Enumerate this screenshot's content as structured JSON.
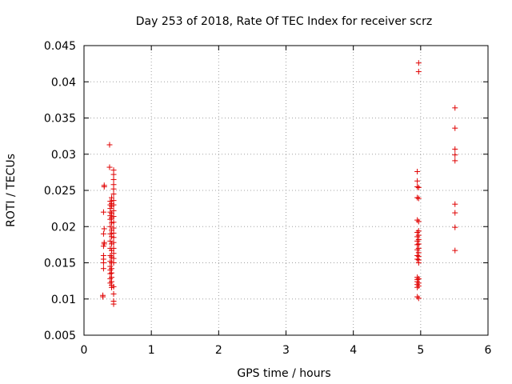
{
  "chart_data": {
    "type": "scatter",
    "title": "Day 253 of 2018, Rate Of TEC Index for receiver scrz",
    "xlabel": "GPS time / hours",
    "ylabel": "ROTI / TECUs",
    "xlim": [
      0,
      6
    ],
    "ylim": [
      0.005,
      0.045
    ],
    "xticks": [
      "0",
      "1",
      "2",
      "3",
      "4",
      "5",
      "6"
    ],
    "yticks": [
      "0.005",
      "0.01",
      "0.015",
      "0.02",
      "0.025",
      "0.03",
      "0.035",
      "0.04",
      "0.045"
    ],
    "grid": true,
    "marker": "+",
    "color": "#e00000",
    "series": [
      {
        "points": [
          [
            0.28,
            0.0105
          ],
          [
            0.28,
            0.0103
          ],
          [
            0.29,
            0.0142
          ],
          [
            0.29,
            0.015
          ],
          [
            0.29,
            0.0155
          ],
          [
            0.29,
            0.016
          ],
          [
            0.29,
            0.0173
          ],
          [
            0.3,
            0.0176
          ],
          [
            0.3,
            0.0178
          ],
          [
            0.29,
            0.019
          ],
          [
            0.3,
            0.0197
          ],
          [
            0.29,
            0.022
          ],
          [
            0.3,
            0.0255
          ],
          [
            0.3,
            0.0257
          ],
          [
            0.38,
            0.0313
          ],
          [
            0.38,
            0.0282
          ],
          [
            0.39,
            0.0235
          ],
          [
            0.39,
            0.023
          ],
          [
            0.39,
            0.0225
          ],
          [
            0.39,
            0.022
          ],
          [
            0.39,
            0.0215
          ],
          [
            0.39,
            0.021
          ],
          [
            0.39,
            0.02
          ],
          [
            0.39,
            0.019
          ],
          [
            0.39,
            0.018
          ],
          [
            0.39,
            0.017
          ],
          [
            0.39,
            0.016
          ],
          [
            0.39,
            0.0152
          ],
          [
            0.39,
            0.0145
          ],
          [
            0.39,
            0.014
          ],
          [
            0.39,
            0.0135
          ],
          [
            0.39,
            0.0128
          ],
          [
            0.39,
            0.0122
          ],
          [
            0.41,
            0.024
          ],
          [
            0.41,
            0.0232
          ],
          [
            0.41,
            0.0228
          ],
          [
            0.41,
            0.0218
          ],
          [
            0.41,
            0.0212
          ],
          [
            0.41,
            0.0205
          ],
          [
            0.41,
            0.0195
          ],
          [
            0.41,
            0.0186
          ],
          [
            0.41,
            0.0176
          ],
          [
            0.41,
            0.0167
          ],
          [
            0.41,
            0.0158
          ],
          [
            0.41,
            0.015
          ],
          [
            0.41,
            0.0142
          ],
          [
            0.41,
            0.0136
          ],
          [
            0.41,
            0.013
          ],
          [
            0.41,
            0.0124
          ],
          [
            0.41,
            0.0119
          ],
          [
            0.41,
            0.0116
          ],
          [
            0.44,
            0.0278
          ],
          [
            0.44,
            0.0272
          ],
          [
            0.44,
            0.0265
          ],
          [
            0.44,
            0.0258
          ],
          [
            0.44,
            0.0252
          ],
          [
            0.44,
            0.0245
          ],
          [
            0.44,
            0.0236
          ],
          [
            0.44,
            0.023
          ],
          [
            0.44,
            0.0222
          ],
          [
            0.44,
            0.0214
          ],
          [
            0.44,
            0.0206
          ],
          [
            0.44,
            0.0198
          ],
          [
            0.44,
            0.0191
          ],
          [
            0.44,
            0.0185
          ],
          [
            0.44,
            0.0178
          ],
          [
            0.44,
            0.017
          ],
          [
            0.44,
            0.0163
          ],
          [
            0.44,
            0.0156
          ],
          [
            0.44,
            0.015
          ],
          [
            0.44,
            0.0117
          ],
          [
            0.44,
            0.0107
          ],
          [
            0.44,
            0.0097
          ],
          [
            0.44,
            0.0093
          ],
          [
            4.95,
            0.0276
          ],
          [
            4.95,
            0.0263
          ],
          [
            4.95,
            0.0255
          ],
          [
            4.95,
            0.024
          ],
          [
            4.95,
            0.0209
          ],
          [
            4.95,
            0.0192
          ],
          [
            4.95,
            0.0186
          ],
          [
            4.95,
            0.018
          ],
          [
            4.95,
            0.0175
          ],
          [
            4.95,
            0.0168
          ],
          [
            4.95,
            0.016
          ],
          [
            4.95,
            0.0155
          ],
          [
            4.95,
            0.013
          ],
          [
            4.95,
            0.0127
          ],
          [
            4.95,
            0.0124
          ],
          [
            4.95,
            0.012
          ],
          [
            4.95,
            0.0116
          ],
          [
            4.95,
            0.0103
          ],
          [
            4.97,
            0.0426
          ],
          [
            4.97,
            0.0414
          ],
          [
            4.97,
            0.0254
          ],
          [
            4.97,
            0.0239
          ],
          [
            4.97,
            0.0207
          ],
          [
            4.97,
            0.0194
          ],
          [
            4.97,
            0.0188
          ],
          [
            4.97,
            0.0182
          ],
          [
            4.97,
            0.0176
          ],
          [
            4.97,
            0.017
          ],
          [
            4.97,
            0.0164
          ],
          [
            4.97,
            0.0159
          ],
          [
            4.97,
            0.0154
          ],
          [
            4.97,
            0.015
          ],
          [
            4.97,
            0.0128
          ],
          [
            4.97,
            0.0122
          ],
          [
            4.97,
            0.0118
          ],
          [
            4.97,
            0.0101
          ],
          [
            5.51,
            0.0364
          ],
          [
            5.51,
            0.0336
          ],
          [
            5.51,
            0.0307
          ],
          [
            5.51,
            0.0299
          ],
          [
            5.51,
            0.0291
          ],
          [
            5.51,
            0.0231
          ],
          [
            5.51,
            0.0219
          ],
          [
            5.51,
            0.0199
          ],
          [
            5.51,
            0.0167
          ]
        ]
      }
    ]
  }
}
